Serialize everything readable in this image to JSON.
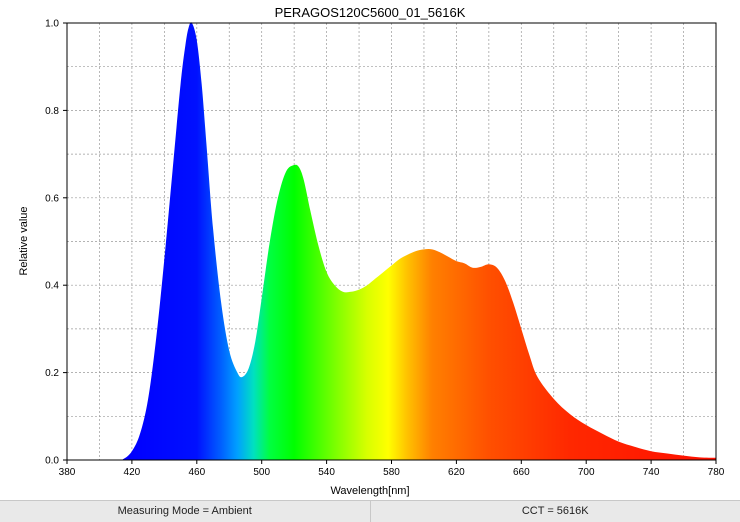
{
  "chart_data": {
    "type": "area",
    "title": "PERAGOS120C5600_01_5616K",
    "xlabel": "Wavelength[nm]",
    "ylabel": "Relative value",
    "xlim": [
      380,
      780
    ],
    "ylim": [
      0,
      1.0
    ],
    "xticks": [
      380,
      420,
      460,
      500,
      540,
      580,
      620,
      660,
      700,
      740,
      780
    ],
    "yticks": [
      0.0,
      0.2,
      0.4,
      0.6,
      0.8,
      1.0
    ],
    "xtick_labels": [
      "380",
      "420",
      "460",
      "500",
      "540",
      "580",
      "620",
      "660",
      "700",
      "740",
      "780"
    ],
    "ytick_labels": [
      "0.0",
      "0.2",
      "0.4",
      "0.6",
      "0.8",
      "1.0"
    ],
    "grid": true,
    "fill": "spectral-color-gradient",
    "x": [
      380,
      410,
      415,
      420,
      425,
      430,
      435,
      440,
      445,
      450,
      453,
      455,
      457,
      460,
      463,
      466,
      470,
      475,
      480,
      485,
      488,
      492,
      496,
      500,
      505,
      510,
      515,
      520,
      523,
      526,
      530,
      535,
      540,
      545,
      550,
      555,
      560,
      565,
      570,
      575,
      580,
      585,
      590,
      595,
      600,
      605,
      610,
      615,
      620,
      625,
      630,
      635,
      640,
      645,
      650,
      655,
      660,
      665,
      670,
      680,
      690,
      700,
      710,
      720,
      730,
      740,
      750,
      760,
      770,
      780
    ],
    "y": [
      0.0,
      0.0,
      0.003,
      0.02,
      0.06,
      0.14,
      0.28,
      0.46,
      0.66,
      0.86,
      0.95,
      0.99,
      1.0,
      0.96,
      0.86,
      0.72,
      0.53,
      0.36,
      0.25,
      0.2,
      0.19,
      0.21,
      0.27,
      0.37,
      0.5,
      0.6,
      0.66,
      0.675,
      0.67,
      0.64,
      0.57,
      0.49,
      0.43,
      0.4,
      0.385,
      0.385,
      0.39,
      0.4,
      0.415,
      0.43,
      0.445,
      0.46,
      0.47,
      0.478,
      0.482,
      0.482,
      0.475,
      0.465,
      0.455,
      0.45,
      0.44,
      0.442,
      0.448,
      0.44,
      0.41,
      0.36,
      0.3,
      0.24,
      0.19,
      0.14,
      0.105,
      0.08,
      0.06,
      0.042,
      0.03,
      0.02,
      0.015,
      0.01,
      0.006,
      0.005
    ]
  },
  "status": {
    "measuring_mode": "Measuring Mode = Ambient",
    "cct": "CCT = 5616K"
  }
}
